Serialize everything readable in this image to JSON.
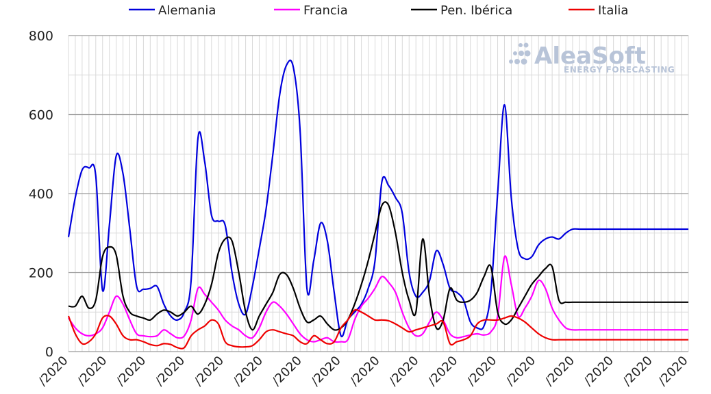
{
  "watermark": {
    "brand": "AleaSoft",
    "tagline": "ENERGY FORECASTING"
  },
  "chart_data": {
    "type": "line",
    "title": "",
    "xlabel": "",
    "ylabel": "",
    "ylim": [
      0,
      800
    ],
    "yticks": [
      0,
      200,
      400,
      600,
      800
    ],
    "grid": true,
    "legend_position": "top",
    "x": [
      0,
      1,
      2,
      3,
      4,
      5,
      6,
      7,
      8,
      9,
      10,
      11,
      12,
      13,
      14,
      15,
      16,
      17,
      18,
      19,
      20,
      21,
      22,
      23,
      24,
      25,
      26,
      27,
      28,
      29,
      30,
      31,
      32,
      33,
      34,
      35,
      36,
      37,
      38,
      39,
      40,
      41,
      42,
      43,
      44,
      45,
      46,
      47,
      48,
      49,
      50,
      51,
      52,
      53,
      54,
      55,
      56,
      57,
      58,
      59,
      60,
      61,
      62,
      63,
      64,
      65,
      66,
      67,
      68,
      69,
      70,
      71,
      72,
      73,
      74,
      75,
      76,
      77,
      78,
      79,
      80,
      81,
      82,
      83,
      84,
      85,
      86,
      87,
      88,
      89,
      90,
      91
    ],
    "xtick_labels": [
      "/2020",
      "/2020",
      "/2020",
      "/2020",
      "/2020",
      "/2020",
      "/2020",
      "/2020",
      "/2020",
      "/2020",
      "/2020",
      "/2020",
      "/2020",
      "/2020",
      "/2020",
      "/2020",
      "/2020"
    ],
    "xtick_positions": [
      0,
      5.72,
      11.44,
      17.16,
      22.88,
      28.6,
      34.32,
      40.04,
      45.76,
      51.48,
      57.2,
      62.92,
      68.64,
      74.36,
      80.08,
      85.8,
      91
    ],
    "series": [
      {
        "name": "Alemania",
        "color": "#0000dd",
        "values": [
          290,
          390,
          460,
          465,
          445,
          155,
          320,
          495,
          450,
          310,
          165,
          158,
          160,
          165,
          120,
          90,
          80,
          100,
          180,
          540,
          480,
          345,
          330,
          320,
          200,
          120,
          95,
          165,
          260,
          360,
          500,
          650,
          725,
          720,
          560,
          160,
          230,
          325,
          280,
          150,
          40,
          80,
          100,
          120,
          160,
          230,
          430,
          420,
          390,
          350,
          200,
          140,
          150,
          180,
          255,
          220,
          160,
          150,
          130,
          75,
          60,
          65,
          150,
          400,
          625,
          390,
          260,
          235,
          240,
          270,
          285,
          290,
          285,
          300,
          310,
          310,
          310,
          310,
          310,
          310,
          310,
          310,
          310,
          310,
          310,
          310,
          310,
          310,
          310,
          310,
          310,
          310
        ]
      },
      {
        "name": "Francia",
        "color": "#ff00ff",
        "values": [
          85,
          60,
          45,
          40,
          45,
          60,
          100,
          140,
          120,
          80,
          45,
          40,
          38,
          40,
          55,
          45,
          35,
          40,
          80,
          160,
          145,
          125,
          105,
          80,
          65,
          55,
          40,
          35,
          60,
          100,
          125,
          115,
          95,
          70,
          45,
          30,
          25,
          30,
          35,
          25,
          25,
          30,
          80,
          115,
          135,
          160,
          190,
          175,
          150,
          100,
          60,
          40,
          45,
          75,
          100,
          80,
          45,
          35,
          38,
          42,
          45,
          42,
          50,
          90,
          240,
          170,
          90,
          110,
          140,
          180,
          160,
          110,
          80,
          60,
          55,
          55,
          55,
          55,
          55,
          55,
          55,
          55,
          55,
          55,
          55,
          55,
          55,
          55,
          55,
          55,
          55,
          55
        ]
      },
      {
        "name": "Pen. Ibérica",
        "color": "#000000",
        "values": [
          115,
          115,
          140,
          110,
          130,
          240,
          265,
          245,
          140,
          100,
          90,
          85,
          80,
          95,
          105,
          100,
          90,
          100,
          115,
          95,
          120,
          170,
          250,
          285,
          280,
          200,
          100,
          55,
          90,
          120,
          150,
          195,
          195,
          160,
          110,
          75,
          80,
          90,
          70,
          55,
          60,
          80,
          120,
          170,
          230,
          300,
          370,
          370,
          300,
          200,
          130,
          100,
          285,
          140,
          60,
          80,
          160,
          130,
          125,
          130,
          150,
          190,
          215,
          100,
          70,
          80,
          110,
          140,
          170,
          190,
          210,
          215,
          130,
          125,
          125,
          125,
          125,
          125,
          125,
          125,
          125,
          125,
          125,
          125,
          125,
          125,
          125,
          125,
          125,
          125,
          125,
          125
        ]
      },
      {
        "name": "Italia",
        "color": "#ee0000",
        "values": [
          90,
          45,
          20,
          25,
          45,
          85,
          90,
          70,
          40,
          30,
          30,
          25,
          18,
          15,
          20,
          18,
          10,
          10,
          40,
          55,
          65,
          80,
          70,
          25,
          15,
          12,
          12,
          15,
          30,
          50,
          55,
          50,
          45,
          40,
          25,
          20,
          40,
          30,
          20,
          25,
          60,
          80,
          105,
          100,
          90,
          80,
          80,
          78,
          70,
          60,
          50,
          55,
          60,
          65,
          70,
          75,
          20,
          25,
          30,
          40,
          70,
          80,
          80,
          80,
          85,
          90,
          85,
          75,
          60,
          45,
          35,
          30,
          30,
          30,
          30,
          30,
          30,
          30,
          30,
          30,
          30,
          30,
          30,
          30,
          30,
          30,
          30,
          30,
          30,
          30,
          30,
          30
        ]
      }
    ]
  }
}
